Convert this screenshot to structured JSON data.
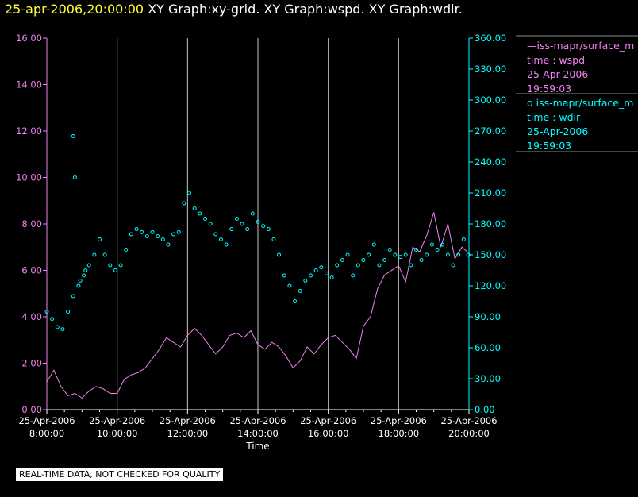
{
  "title": {
    "timestamp": "25-apr-2006,20:00:00",
    "graphs": "XY Graph:xy-grid.  XY Graph:wspd.  XY Graph:wdir."
  },
  "colors": {
    "wspd": "#ee82ee",
    "wdir": "#00ffff",
    "grid": "#c8c8c8",
    "text": "#ffffff",
    "background": "#000000"
  },
  "legend": {
    "wspd": {
      "name": "—iss-mapr/surface_m",
      "var": "time : wspd",
      "date": "25-Apr-2006",
      "time": "19:59:03"
    },
    "wdir": {
      "name": "o  iss-mapr/surface_m",
      "var": "time : wdir",
      "date": "25-Apr-2006",
      "time": "19:59:03"
    }
  },
  "notice": "REAL-TIME DATA, NOT CHECKED FOR QUALITY",
  "chart_data": {
    "type": "line",
    "xlabel": "Time",
    "xlim": [
      8,
      20
    ],
    "x_ticks": [
      {
        "x": 8,
        "date": "25-Apr-2006",
        "time": "8:00:00"
      },
      {
        "x": 10,
        "date": "25-Apr-2006",
        "time": "10:00:00"
      },
      {
        "x": 12,
        "date": "25-Apr-2006",
        "time": "12:00:00"
      },
      {
        "x": 14,
        "date": "25-Apr-2006",
        "time": "14:00:00"
      },
      {
        "x": 16,
        "date": "25-Apr-2006",
        "time": "16:00:00"
      },
      {
        "x": 18,
        "date": "25-Apr-2006",
        "time": "18:00:00"
      },
      {
        "x": 20,
        "date": "25-Apr-2006",
        "time": "20:00:00"
      }
    ],
    "left_axis": {
      "ylim": [
        0,
        16
      ],
      "ticks": [
        "0.00",
        "2.00",
        "4.00",
        "6.00",
        "8.00",
        "10.00",
        "12.00",
        "14.00",
        "16.00"
      ]
    },
    "right_axis": {
      "ylim": [
        0,
        360
      ],
      "ticks": [
        "0.00",
        "30.00",
        "60.00",
        "90.00",
        "120.00",
        "150.00",
        "180.00",
        "210.00",
        "240.00",
        "270.00",
        "300.00",
        "330.00",
        "360.00"
      ]
    },
    "grid": "vertical",
    "series": [
      {
        "name": "iss-mapr/surface_m",
        "var": "wspd",
        "style": "line",
        "axis": "left",
        "x": [
          8.0,
          8.2,
          8.4,
          8.6,
          8.8,
          9.0,
          9.2,
          9.4,
          9.6,
          9.8,
          10.0,
          10.2,
          10.4,
          10.6,
          10.8,
          11.0,
          11.2,
          11.4,
          11.6,
          11.8,
          12.0,
          12.2,
          12.4,
          12.6,
          12.8,
          13.0,
          13.2,
          13.4,
          13.6,
          13.8,
          14.0,
          14.2,
          14.4,
          14.6,
          14.8,
          15.0,
          15.2,
          15.4,
          15.6,
          15.8,
          16.0,
          16.2,
          16.4,
          16.6,
          16.8,
          17.0,
          17.2,
          17.4,
          17.6,
          17.8,
          18.0,
          18.2,
          18.4,
          18.6,
          18.8,
          19.0,
          19.2,
          19.4,
          19.6,
          19.8,
          19.95
        ],
        "y": [
          1.2,
          1.7,
          1.0,
          0.6,
          0.7,
          0.5,
          0.8,
          1.0,
          0.9,
          0.7,
          0.7,
          1.3,
          1.5,
          1.6,
          1.8,
          2.2,
          2.6,
          3.1,
          2.9,
          2.7,
          3.2,
          3.5,
          3.2,
          2.8,
          2.4,
          2.7,
          3.2,
          3.3,
          3.1,
          3.4,
          2.8,
          2.6,
          2.9,
          2.7,
          2.3,
          1.8,
          2.1,
          2.7,
          2.4,
          2.8,
          3.1,
          3.2,
          2.9,
          2.6,
          2.2,
          3.6,
          4.0,
          5.2,
          5.8,
          6.0,
          6.2,
          5.5,
          7.0,
          6.8,
          7.5,
          8.5,
          7.0,
          8.0,
          6.5,
          7.0,
          6.8
        ]
      },
      {
        "name": "iss-mapr/surface_m",
        "var": "wdir",
        "style": "scatter",
        "axis": "right",
        "x": [
          8.0,
          8.15,
          8.3,
          8.45,
          8.6,
          8.75,
          8.9,
          9.05,
          9.2,
          9.35,
          9.5,
          9.65,
          9.8,
          9.95,
          10.1,
          10.25,
          10.4,
          10.55,
          10.7,
          10.85,
          11.0,
          11.15,
          11.3,
          11.45,
          11.6,
          11.75,
          11.9,
          12.05,
          12.2,
          12.35,
          12.5,
          12.65,
          12.8,
          12.95,
          13.1,
          13.25,
          13.4,
          13.55,
          13.7,
          13.85,
          14.0,
          14.15,
          14.3,
          14.45,
          14.6,
          14.75,
          14.9,
          15.05,
          15.2,
          15.35,
          15.5,
          15.65,
          15.8,
          15.95,
          16.1,
          16.25,
          16.4,
          16.55,
          16.7,
          16.85,
          17.0,
          17.15,
          17.3,
          17.45,
          17.6,
          17.75,
          17.9,
          18.05,
          18.2,
          18.35,
          18.5,
          18.65,
          18.8,
          18.95,
          19.1,
          19.25,
          19.4,
          19.55,
          19.7,
          19.85,
          19.98,
          8.75,
          8.8,
          8.95,
          9.1
        ],
        "y": [
          95,
          88,
          80,
          78,
          95,
          110,
          120,
          130,
          140,
          150,
          165,
          150,
          140,
          135,
          140,
          155,
          170,
          175,
          172,
          168,
          172,
          168,
          165,
          160,
          170,
          172,
          200,
          210,
          195,
          190,
          185,
          180,
          170,
          165,
          160,
          175,
          185,
          180,
          175,
          190,
          182,
          178,
          175,
          165,
          150,
          130,
          120,
          105,
          115,
          125,
          130,
          135,
          138,
          132,
          128,
          140,
          145,
          150,
          130,
          140,
          145,
          150,
          160,
          140,
          145,
          155,
          150,
          148,
          150,
          140,
          155,
          145,
          150,
          160,
          155,
          160,
          150,
          140,
          150,
          165,
          150,
          265,
          225,
          125,
          135
        ]
      }
    ]
  }
}
